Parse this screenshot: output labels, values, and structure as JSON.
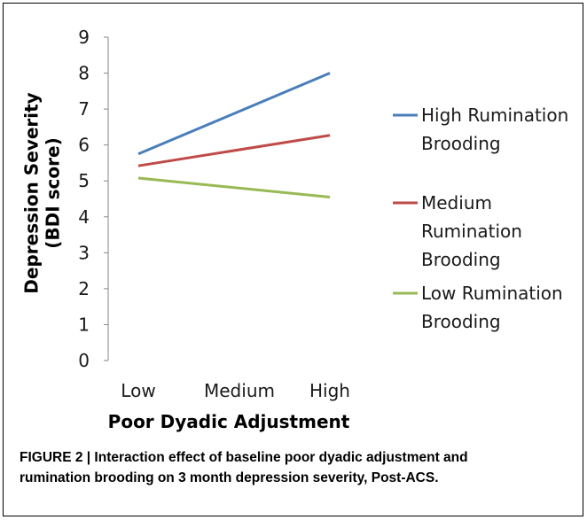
{
  "chart_data": {
    "type": "line",
    "categories": [
      "Low",
      "Medium",
      "High"
    ],
    "xlabel": "Poor Dyadic Adjustment",
    "ylabel_lines": [
      "Depression Severity",
      "(BDI score)"
    ],
    "ylim": [
      0,
      9
    ],
    "yticks": [
      0,
      1,
      2,
      3,
      4,
      5,
      6,
      7,
      8,
      9
    ],
    "grid": false,
    "legend_position": "right",
    "series": [
      {
        "name_lines": [
          "High Rumination",
          "Brooding"
        ],
        "color": "#4a7ebb",
        "points": [
          [
            "Low",
            5.75
          ],
          [
            "High",
            8.0
          ]
        ]
      },
      {
        "name_lines": [
          "Medium",
          "Rumination",
          "Brooding"
        ],
        "color": "#be4b48",
        "points": [
          [
            "Low",
            5.42
          ],
          [
            "High",
            6.27
          ]
        ]
      },
      {
        "name_lines": [
          "Low Rumination",
          "Brooding"
        ],
        "color": "#98b954",
        "points": [
          [
            "Low",
            5.08
          ],
          [
            "High",
            4.55
          ]
        ]
      }
    ]
  },
  "caption": {
    "lines": [
      "FIGURE 2 | Interaction effect of baseline poor dyadic adjustment and",
      "rumination brooding on 3 month depression severity, Post-ACS."
    ]
  }
}
